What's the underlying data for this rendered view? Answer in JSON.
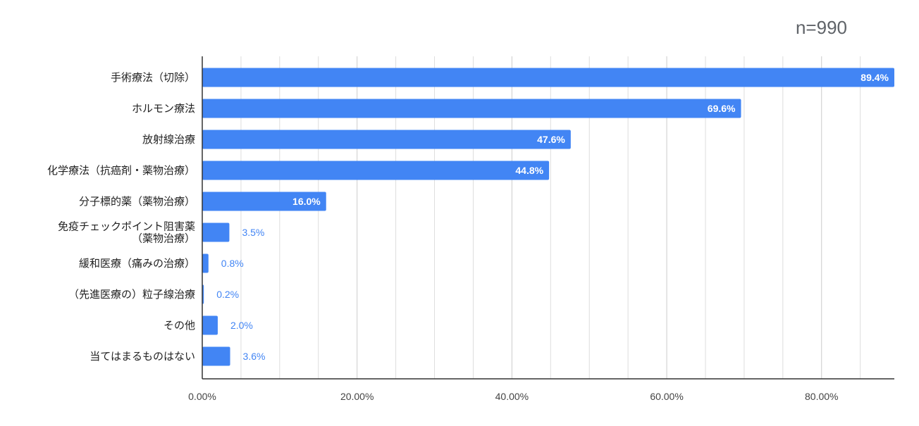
{
  "note": "n=990",
  "colors": {
    "bar": "#4285f4",
    "grid": "#dddddd",
    "axis": "#333333",
    "note": "#5f6368"
  },
  "chart_data": {
    "type": "bar",
    "orientation": "horizontal",
    "categories": [
      [
        "手術療法（切除）"
      ],
      [
        "ホルモン療法"
      ],
      [
        "放射線治療"
      ],
      [
        "化学療法（抗癌剤・薬物治療）"
      ],
      [
        "分子標的薬（薬物治療）"
      ],
      [
        "免疫チェックポイント阻害薬",
        "（薬物治療）"
      ],
      [
        "緩和医療（痛みの治療）"
      ],
      [
        "（先進医療の）粒子線治療"
      ],
      [
        "その他"
      ],
      [
        "当てはまるものはない"
      ]
    ],
    "values": [
      89.4,
      69.6,
      47.6,
      44.8,
      16.0,
      3.5,
      0.8,
      0.2,
      2.0,
      3.6
    ],
    "value_labels": [
      "89.4%",
      "69.6%",
      "47.6%",
      "44.8%",
      "16.0%",
      "3.5%",
      "0.8%",
      "0.2%",
      "2.0%",
      "3.6%"
    ],
    "xlim": [
      0,
      89.4
    ],
    "xticks": [
      0,
      20,
      40,
      60,
      80
    ],
    "xtick_labels": [
      "0.00%",
      "20.00%",
      "40.00%",
      "60.00%",
      "80.00%"
    ],
    "minor_gridlines": [
      5,
      10,
      15,
      25,
      30,
      35,
      45,
      50,
      55,
      65,
      70,
      75,
      85
    ],
    "grid": true,
    "legend": "none"
  }
}
